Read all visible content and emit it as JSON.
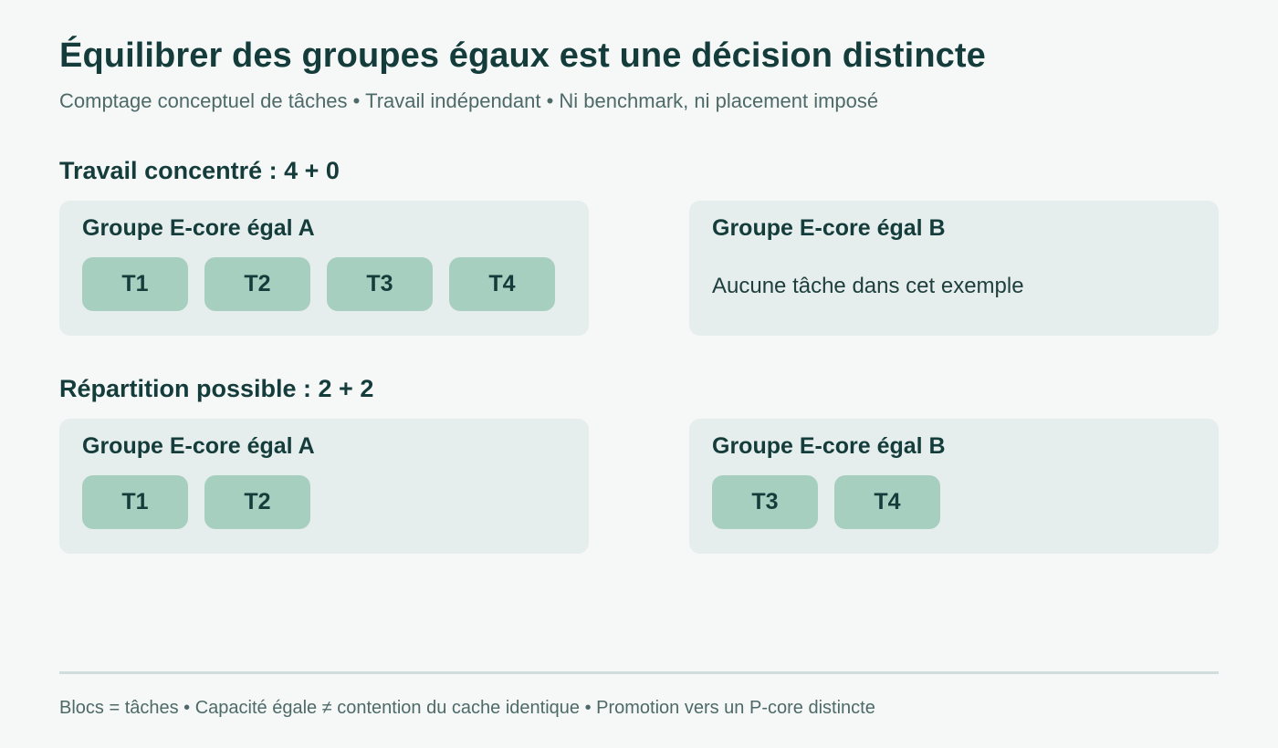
{
  "header": {
    "title": "Équilibrer des groupes égaux est une décision distincte",
    "subtitle": "Comptage conceptuel de tâches • Travail indépendant • Ni benchmark, ni placement imposé"
  },
  "sections": [
    {
      "title": "Travail concentré : 4 + 0",
      "groups": [
        {
          "label": "Groupe E-core égal A",
          "tasks": [
            "T1",
            "T2",
            "T3",
            "T4"
          ],
          "empty_note": ""
        },
        {
          "label": "Groupe E-core égal B",
          "tasks": [],
          "empty_note": "Aucune tâche dans cet exemple"
        }
      ]
    },
    {
      "title": "Répartition possible : 2 + 2",
      "groups": [
        {
          "label": "Groupe E-core égal A",
          "tasks": [
            "T1",
            "T2"
          ],
          "empty_note": ""
        },
        {
          "label": "Groupe E-core égal B",
          "tasks": [
            "T3",
            "T4"
          ],
          "empty_note": ""
        }
      ]
    }
  ],
  "footer": {
    "note": "Blocs = tâches • Capacité égale ≠ contention du cache identique • Promotion vers un P-core distincte"
  },
  "colors": {
    "background": "#f6f8f7",
    "group_fill": "#e5eeec",
    "task_fill": "#a7cfbf",
    "text_dark": "#143c3b",
    "text_muted": "#4d6a68"
  }
}
